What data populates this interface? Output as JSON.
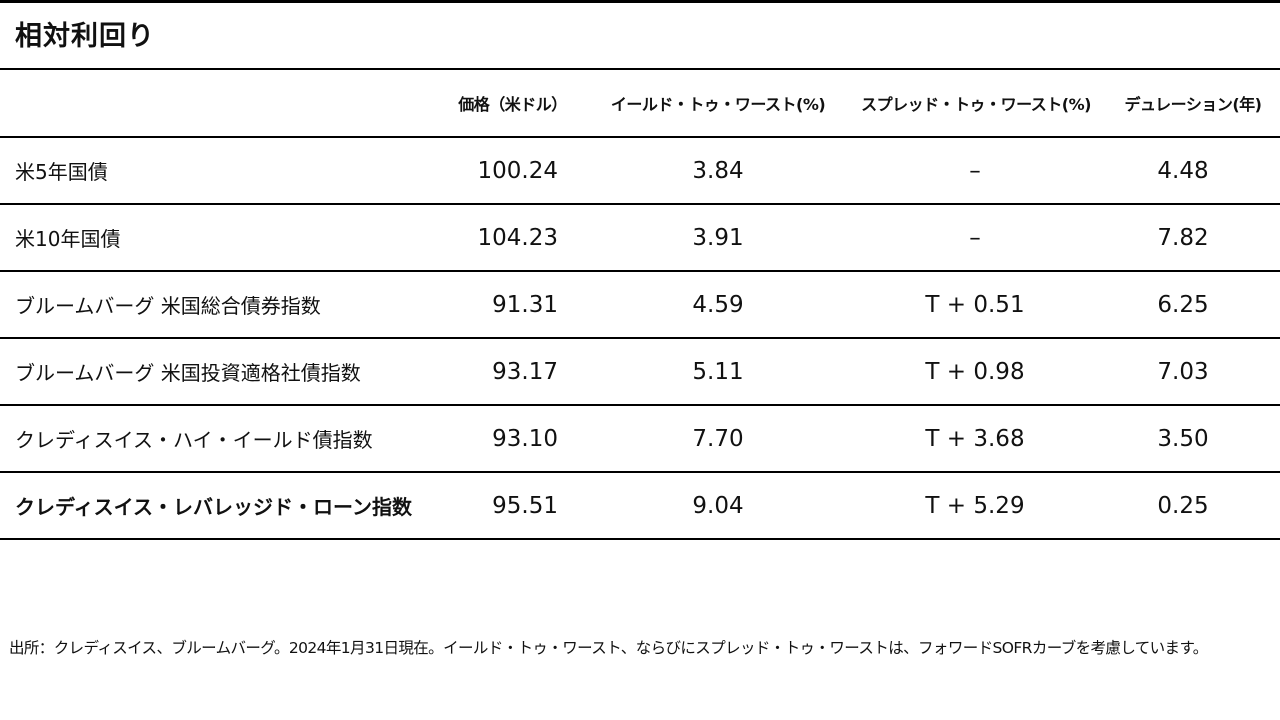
{
  "title": "相対利回り",
  "columns": {
    "label": "",
    "price": "価格（米ドル）",
    "ytw": "イールド・トゥ・ワースト(%)",
    "spread": "スプレッド・トゥ・ワースト(%)",
    "duration": "デュレーション(年)"
  },
  "rows": [
    {
      "label": "米5年国債",
      "price": "100.24",
      "ytw": "3.84",
      "spread": "–",
      "duration": "4.48"
    },
    {
      "label": "米10年国債",
      "price": "104.23",
      "ytw": "3.91",
      "spread": "–",
      "duration": "7.82"
    },
    {
      "label": "ブルームバーグ 米国総合債券指数",
      "price": "91.31",
      "ytw": "4.59",
      "spread": "T + 0.51",
      "duration": "6.25"
    },
    {
      "label": "ブルームバーグ 米国投資適格社債指数",
      "price": "93.17",
      "ytw": "5.11",
      "spread": "T + 0.98",
      "duration": "7.03"
    },
    {
      "label": "クレディスイス・ハイ・イールド債指数",
      "price": "93.10",
      "ytw": "7.70",
      "spread": "T + 3.68",
      "duration": "3.50"
    },
    {
      "label": "クレディスイス・レバレッジド・ローン指数",
      "price": "95.51",
      "ytw": "9.04",
      "spread": "T + 5.29",
      "duration": "0.25",
      "bold": true
    }
  ],
  "footnote": "出所：クレディスイス、ブルームバーグ。2024年1月31日現在。イールド・トゥ・ワースト、ならびにスプレッド・トゥ・ワーストは、フォワードSOFRカーブを考慮しています。"
}
